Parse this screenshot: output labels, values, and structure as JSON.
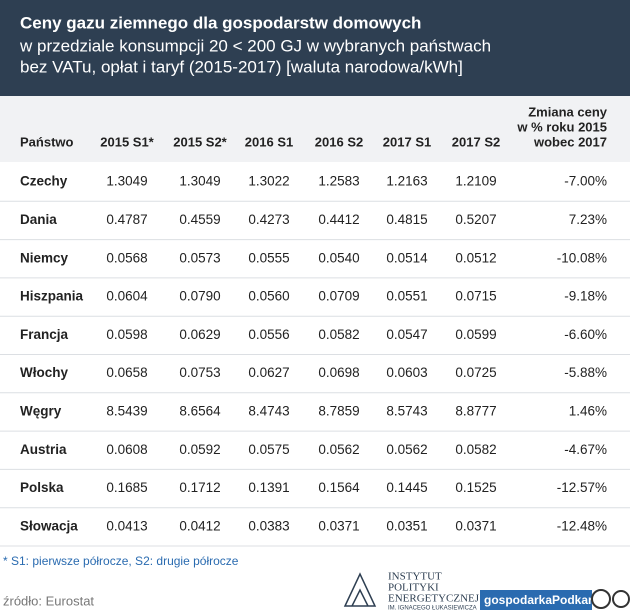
{
  "header": {
    "title": "Ceny gazu ziemnego dla gospodarstw domowych",
    "subtitle": [
      "w przedziale konsumpcji 20 < 200 GJ w wybranych państwach",
      "bez VATu, opłat i taryf (2015-2017) [waluta narodowa/kWh]"
    ]
  },
  "table": {
    "columns": [
      "Państwo",
      "2015 S1*",
      "2015 S2*",
      "2016 S1",
      "2016 S2",
      "2017 S1",
      "2017 S2"
    ],
    "change_header": [
      "Zmiana ceny",
      "w % roku 2015",
      "wobec 2017"
    ],
    "rows": [
      [
        "Czechy",
        "1.3049",
        "1.3049",
        "1.3022",
        "1.2583",
        "1.2163",
        "1.2109",
        "-7.00%"
      ],
      [
        "Dania",
        "0.4787",
        "0.4559",
        "0.4273",
        "0.4412",
        "0.4815",
        "0.5207",
        "7.23%"
      ],
      [
        "Niemcy",
        "0.0568",
        "0.0573",
        "0.0555",
        "0.0540",
        "0.0514",
        "0.0512",
        "-10.08%"
      ],
      [
        "Hiszpania",
        "0.0604",
        "0.0790",
        "0.0560",
        "0.0709",
        "0.0551",
        "0.0715",
        "-9.18%"
      ],
      [
        "Francja",
        "0.0598",
        "0.0629",
        "0.0556",
        "0.0582",
        "0.0547",
        "0.0599",
        "-6.60%"
      ],
      [
        "Włochy",
        "0.0658",
        "0.0753",
        "0.0627",
        "0.0698",
        "0.0603",
        "0.0725",
        "-5.88%"
      ],
      [
        "Węgry",
        "8.5439",
        "8.6564",
        "8.4743",
        "8.7859",
        "8.5743",
        "8.8777",
        "1.46%"
      ],
      [
        "Austria",
        "0.0608",
        "0.0592",
        "0.0575",
        "0.0562",
        "0.0562",
        "0.0582",
        "-4.67%"
      ],
      [
        "Polska",
        "0.1685",
        "0.1712",
        "0.1391",
        "0.1564",
        "0.1445",
        "0.1525",
        "-12.57%"
      ],
      [
        "Słowacja",
        "0.0413",
        "0.0412",
        "0.0383",
        "0.0371",
        "0.0351",
        "0.0371",
        "-12.48%"
      ]
    ]
  },
  "footnote": "* S1: pierwsze półrocze, S2: drugie półrocze",
  "source": "źródło: Eurostat",
  "logo": [
    "INSTYTUT",
    "POLITYKI",
    "ENERGETYCZNEJ",
    "IM. IGNACEGO ŁUKASIEWICZA"
  ],
  "watermark": "gospodarkaPodkarpacka"
}
